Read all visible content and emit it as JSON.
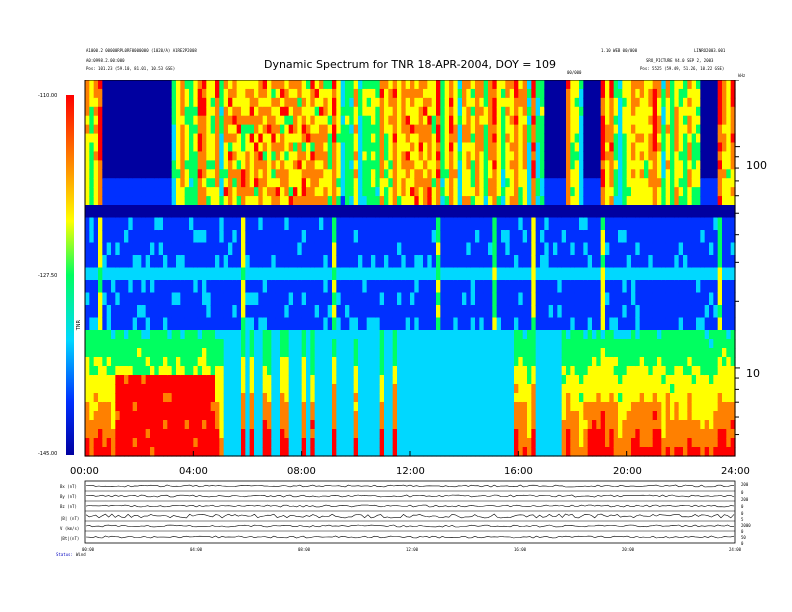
{
  "chart_data": {
    "type": "heatmap",
    "title": "Dynamic Spectrum for TNR 18-APR-2004, DOY = 109",
    "x_ticks": [
      "00:00",
      "04:00",
      "08:00",
      "12:00",
      "16:00",
      "20:00",
      "24:00"
    ],
    "x_range_hours": [
      0,
      24
    ],
    "y_scale": "log",
    "y_unit": "kHz",
    "y_ticks": [
      {
        "label": "100",
        "value": 100
      },
      {
        "label": "10",
        "value": 10
      }
    ],
    "y_range": [
      4,
      200
    ],
    "colorbar": {
      "label": "TNR",
      "ticks": [
        "-110.00",
        "-127.50",
        "-145.00"
      ],
      "range": [
        -145,
        -110
      ],
      "colors": [
        "#0000a0",
        "#0030ff",
        "#00d8ff",
        "#00ff60",
        "#ffff00",
        "#ff8000",
        "#ff0000"
      ]
    },
    "bands": [
      {
        "name": "upper",
        "f_range": [
          64,
          200
        ]
      },
      {
        "name": "middle",
        "f_range": [
          16,
          64
        ]
      },
      {
        "name": "lower",
        "f_range": [
          4,
          16
        ]
      }
    ],
    "header_left": [
      "A1000.2 00000RPL0RF0000000 (1020/A) A1RE2P2008",
      "A0:0998.2.00:000",
      "Pos:   101.23 (59.10, 81.01, 10.53 GSE)"
    ],
    "header_right": [
      "1.10 WEB 00/000",
      "LINRO2003.001",
      "SRO_PICTURE V4.0 SEP 2, 2003",
      "Pos:   5525 (59.49, 51.26, 10.22 GSE)"
    ],
    "header_mid": "00/000",
    "kHz_label": "kHz",
    "bottom_panel": {
      "row_labels": [
        "Bx (nT)",
        "By (nT)",
        "Bz (nT)",
        "|B| (nT)",
        "V (km/s)",
        "|Bt|(nT)"
      ],
      "right_labels": [
        "200",
        "0",
        "200",
        "0",
        "0",
        "5",
        "2000",
        "0",
        "50",
        "0"
      ],
      "x_ticks": [
        "00:00",
        "04:00",
        "08:00",
        "12:00",
        "16:00",
        "20:00",
        "24:00"
      ],
      "footer": [
        "Status:",
        "Wind"
      ]
    }
  }
}
